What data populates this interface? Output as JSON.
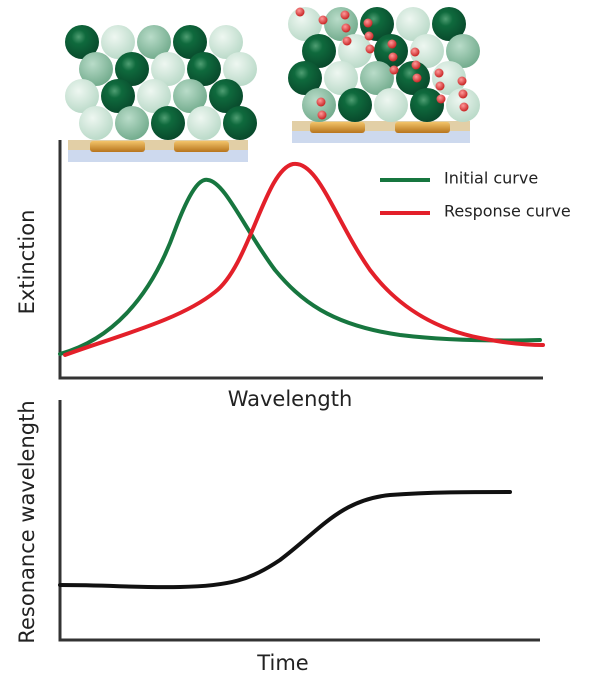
{
  "top_panel": {
    "y_label": "Extinction",
    "x_label": "Wavelength",
    "legend": [
      {
        "label": "Initial curve"
      },
      {
        "label": "Response curve"
      }
    ]
  },
  "bottom_panel": {
    "y_label": "Resonance wavelength",
    "x_label": "Time"
  }
}
